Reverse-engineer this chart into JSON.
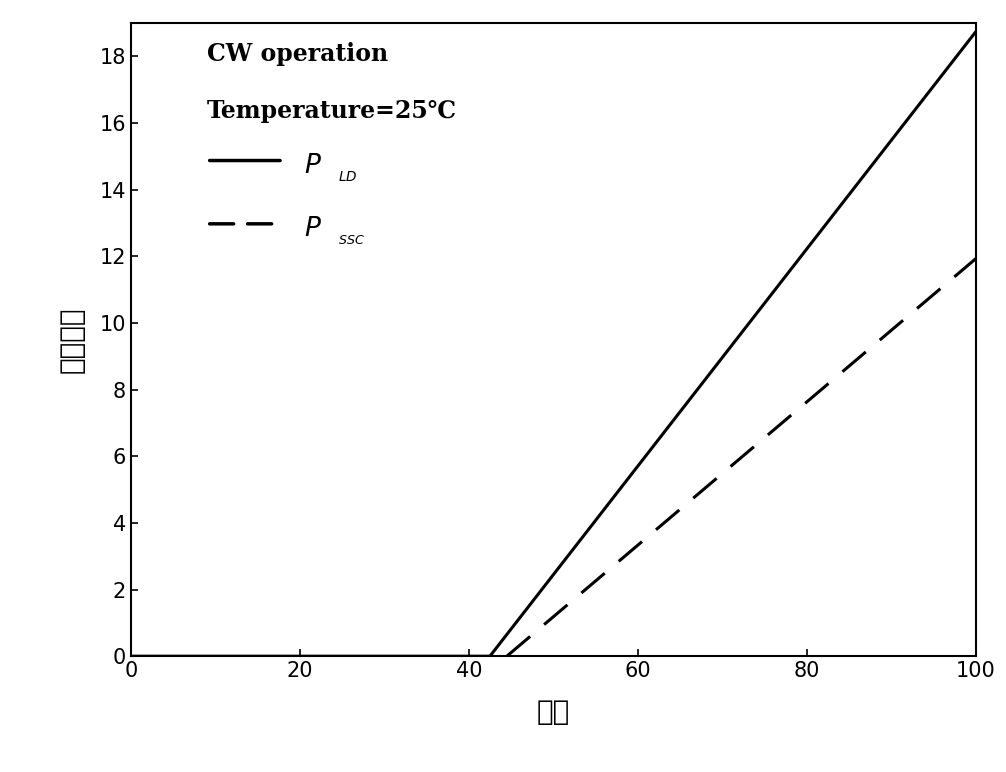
{
  "title_line1": "CW operation",
  "title_line2": "Temperature=25℃",
  "xlabel": "电流",
  "ylabel": "输出功率",
  "xlim": [
    0,
    100
  ],
  "ylim": [
    0,
    19
  ],
  "xticks": [
    0,
    20,
    40,
    60,
    80,
    100
  ],
  "yticks": [
    0,
    2,
    4,
    6,
    8,
    10,
    12,
    14,
    16,
    18
  ],
  "threshold_current": 42.5,
  "ld_slope": 0.326,
  "ssc_slope": 0.215,
  "ssc_start": 44.5,
  "background_color": "#ffffff",
  "line_color": "#000000",
  "linewidth_solid": 2.2,
  "linewidth_dashed": 2.2,
  "tick_fontsize": 15,
  "label_fontsize": 20,
  "annotation_fontsize": 16,
  "legend_text_fontsize": 17
}
